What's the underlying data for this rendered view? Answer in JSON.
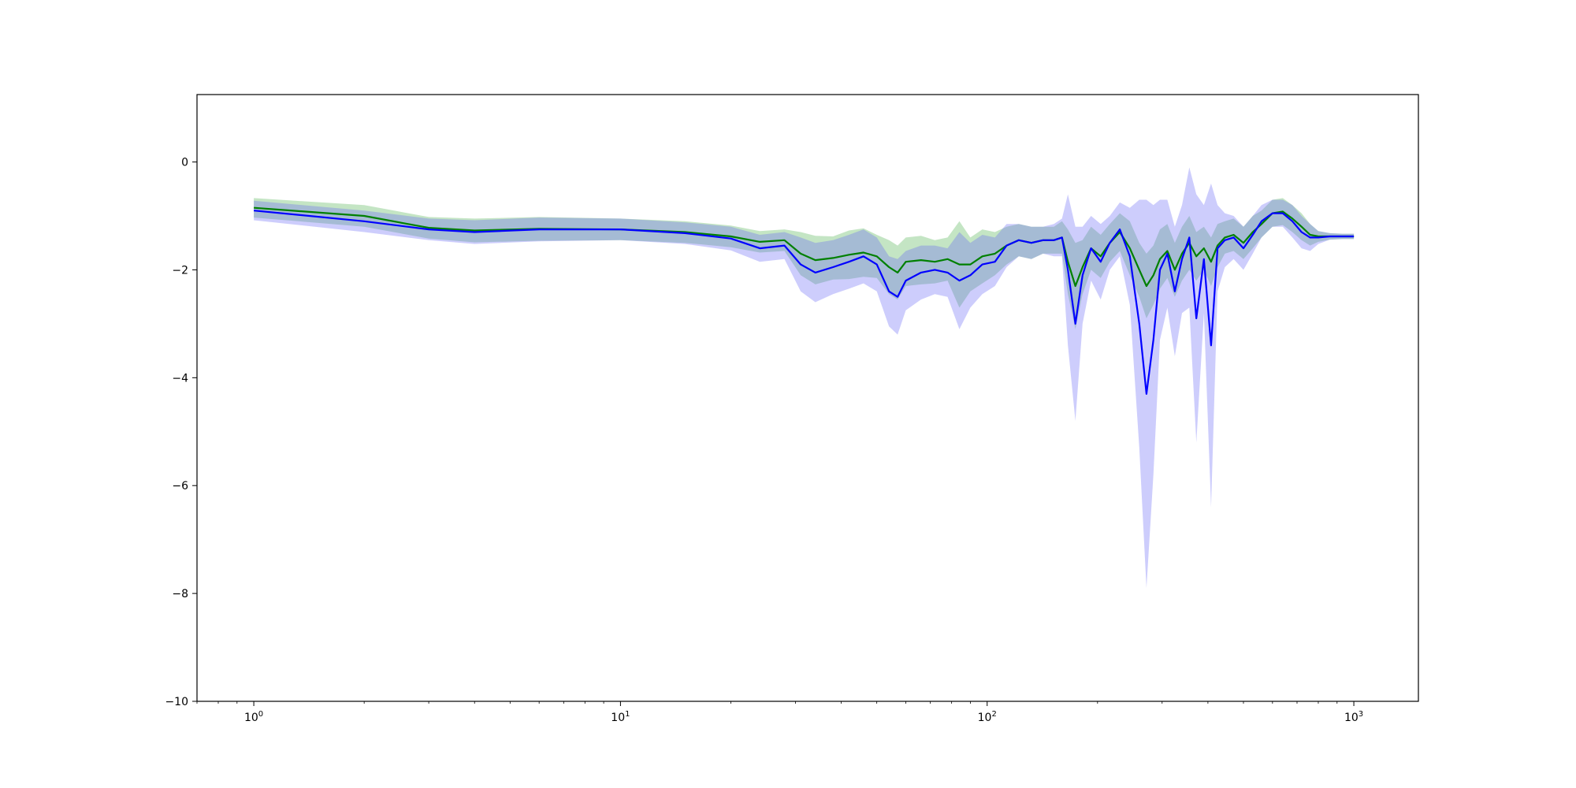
{
  "chart_data": {
    "type": "line",
    "title": "",
    "xlabel": "",
    "ylabel": "",
    "xscale": "log",
    "xlim": [
      0.7,
      1500
    ],
    "ylim": [
      -10,
      1.25
    ],
    "grid": false,
    "legend": "none",
    "x_ticks": [
      {
        "value": 1,
        "base": "10",
        "exp": "0"
      },
      {
        "value": 10,
        "base": "10",
        "exp": "1"
      },
      {
        "value": 100,
        "base": "10",
        "exp": "2"
      },
      {
        "value": 1000,
        "base": "10",
        "exp": "3"
      }
    ],
    "y_ticks": [
      {
        "value": 0,
        "label": "0"
      },
      {
        "value": -2,
        "label": "−2"
      },
      {
        "value": -4,
        "label": "−4"
      },
      {
        "value": -6,
        "label": "−6"
      },
      {
        "value": -8,
        "label": "−8"
      },
      {
        "value": -10,
        "label": "−10"
      }
    ],
    "series": [
      {
        "color": "#008000",
        "band_color": "#2ca02c",
        "points": [
          [
            1,
            -0.85,
            0.18
          ],
          [
            2,
            -1.0,
            0.2
          ],
          [
            3,
            -1.22,
            0.2
          ],
          [
            4,
            -1.27,
            0.22
          ],
          [
            6,
            -1.24,
            0.22
          ],
          [
            10,
            -1.25,
            0.2
          ],
          [
            15,
            -1.3,
            0.2
          ],
          [
            20,
            -1.38,
            0.2
          ],
          [
            24,
            -1.48,
            0.2
          ],
          [
            28,
            -1.45,
            0.2
          ],
          [
            31,
            -1.7,
            0.4
          ],
          [
            34,
            -1.82,
            0.45
          ],
          [
            38,
            -1.78,
            0.4
          ],
          [
            42,
            -1.72,
            0.45
          ],
          [
            46,
            -1.68,
            0.45
          ],
          [
            50,
            -1.75,
            0.4
          ],
          [
            54,
            -1.95,
            0.5
          ],
          [
            57,
            -2.05,
            0.5
          ],
          [
            60,
            -1.85,
            0.45
          ],
          [
            66,
            -1.82,
            0.45
          ],
          [
            72,
            -1.85,
            0.4
          ],
          [
            78,
            -1.8,
            0.4
          ],
          [
            84,
            -1.9,
            0.8
          ],
          [
            90,
            -1.9,
            0.5
          ],
          [
            97,
            -1.75,
            0.5
          ],
          [
            105,
            -1.7,
            0.4
          ],
          [
            113,
            -1.55,
            0.35
          ],
          [
            122,
            -1.45,
            0.3
          ],
          [
            132,
            -1.5,
            0.3
          ],
          [
            142,
            -1.45,
            0.25
          ],
          [
            152,
            -1.45,
            0.25
          ],
          [
            160,
            -1.4,
            0.3
          ],
          [
            166,
            -1.85,
            0.6
          ],
          [
            174,
            -2.3,
            0.8
          ],
          [
            182,
            -1.95,
            0.5
          ],
          [
            192,
            -1.6,
            0.4
          ],
          [
            204,
            -1.75,
            0.4
          ],
          [
            216,
            -1.5,
            0.35
          ],
          [
            230,
            -1.3,
            0.35
          ],
          [
            245,
            -1.6,
            0.5
          ],
          [
            260,
            -2.0,
            0.5
          ],
          [
            272,
            -2.3,
            0.6
          ],
          [
            284,
            -2.1,
            0.55
          ],
          [
            296,
            -1.8,
            0.55
          ],
          [
            310,
            -1.65,
            0.5
          ],
          [
            325,
            -2.0,
            0.5
          ],
          [
            340,
            -1.7,
            0.5
          ],
          [
            356,
            -1.5,
            0.5
          ],
          [
            372,
            -1.75,
            0.45
          ],
          [
            390,
            -1.6,
            0.4
          ],
          [
            408,
            -1.85,
            0.45
          ],
          [
            425,
            -1.55,
            0.4
          ],
          [
            445,
            -1.4,
            0.3
          ],
          [
            470,
            -1.35,
            0.3
          ],
          [
            500,
            -1.5,
            0.3
          ],
          [
            530,
            -1.3,
            0.3
          ],
          [
            560,
            -1.15,
            0.25
          ],
          [
            600,
            -0.95,
            0.25
          ],
          [
            640,
            -0.92,
            0.25
          ],
          [
            680,
            -1.05,
            0.25
          ],
          [
            720,
            -1.2,
            0.25
          ],
          [
            760,
            -1.35,
            0.2
          ],
          [
            800,
            -1.38,
            0.1
          ],
          [
            860,
            -1.38,
            0.06
          ],
          [
            930,
            -1.38,
            0.05
          ],
          [
            1000,
            -1.38,
            0.05
          ]
        ]
      },
      {
        "color": "#0000ff",
        "band_color": "#6262f5",
        "points": [
          [
            1,
            -0.9,
            0.18
          ],
          [
            2,
            -1.1,
            0.2
          ],
          [
            3,
            -1.25,
            0.2
          ],
          [
            4,
            -1.3,
            0.22
          ],
          [
            6,
            -1.25,
            0.22
          ],
          [
            10,
            -1.25,
            0.2
          ],
          [
            15,
            -1.32,
            0.2
          ],
          [
            20,
            -1.42,
            0.22
          ],
          [
            24,
            -1.6,
            0.25
          ],
          [
            28,
            -1.55,
            0.25
          ],
          [
            31,
            -1.9,
            0.5
          ],
          [
            34,
            -2.05,
            0.55
          ],
          [
            38,
            -1.95,
            0.5
          ],
          [
            42,
            -1.85,
            0.5
          ],
          [
            46,
            -1.75,
            0.5
          ],
          [
            50,
            -1.9,
            0.5
          ],
          [
            54,
            -2.4,
            0.65
          ],
          [
            57,
            -2.5,
            0.7
          ],
          [
            60,
            -2.2,
            0.55
          ],
          [
            66,
            -2.05,
            0.5
          ],
          [
            72,
            -2.0,
            0.45
          ],
          [
            78,
            -2.05,
            0.45
          ],
          [
            84,
            -2.2,
            0.9
          ],
          [
            90,
            -2.1,
            0.6
          ],
          [
            97,
            -1.9,
            0.55
          ],
          [
            105,
            -1.85,
            0.45
          ],
          [
            113,
            -1.55,
            0.4
          ],
          [
            122,
            -1.45,
            0.3
          ],
          [
            132,
            -1.5,
            0.3
          ],
          [
            142,
            -1.45,
            0.25
          ],
          [
            152,
            -1.45,
            0.3
          ],
          [
            160,
            -1.4,
            0.35
          ],
          [
            166,
            -2.0,
            1.4
          ],
          [
            174,
            -3.0,
            1.8
          ],
          [
            182,
            -2.1,
            0.9
          ],
          [
            192,
            -1.6,
            0.6
          ],
          [
            204,
            -1.85,
            0.7
          ],
          [
            216,
            -1.5,
            0.5
          ],
          [
            230,
            -1.25,
            0.5
          ],
          [
            245,
            -1.75,
            0.9
          ],
          [
            260,
            -3.0,
            2.3
          ],
          [
            272,
            -4.3,
            3.6
          ],
          [
            284,
            -3.3,
            2.5
          ],
          [
            296,
            -2.0,
            1.3
          ],
          [
            310,
            -1.7,
            1.0
          ],
          [
            325,
            -2.4,
            1.2
          ],
          [
            340,
            -1.8,
            1.0
          ],
          [
            356,
            -1.4,
            1.3
          ],
          [
            372,
            -2.9,
            2.3
          ],
          [
            390,
            -1.8,
            1.0
          ],
          [
            408,
            -3.4,
            3.0
          ],
          [
            425,
            -1.6,
            0.8
          ],
          [
            445,
            -1.45,
            0.5
          ],
          [
            470,
            -1.4,
            0.4
          ],
          [
            500,
            -1.6,
            0.4
          ],
          [
            530,
            -1.35,
            0.35
          ],
          [
            560,
            -1.1,
            0.3
          ],
          [
            600,
            -0.95,
            0.25
          ],
          [
            640,
            -0.95,
            0.25
          ],
          [
            680,
            -1.1,
            0.3
          ],
          [
            720,
            -1.3,
            0.3
          ],
          [
            760,
            -1.4,
            0.25
          ],
          [
            800,
            -1.4,
            0.12
          ],
          [
            860,
            -1.38,
            0.06
          ],
          [
            930,
            -1.38,
            0.05
          ],
          [
            1000,
            -1.38,
            0.05
          ]
        ]
      }
    ]
  }
}
